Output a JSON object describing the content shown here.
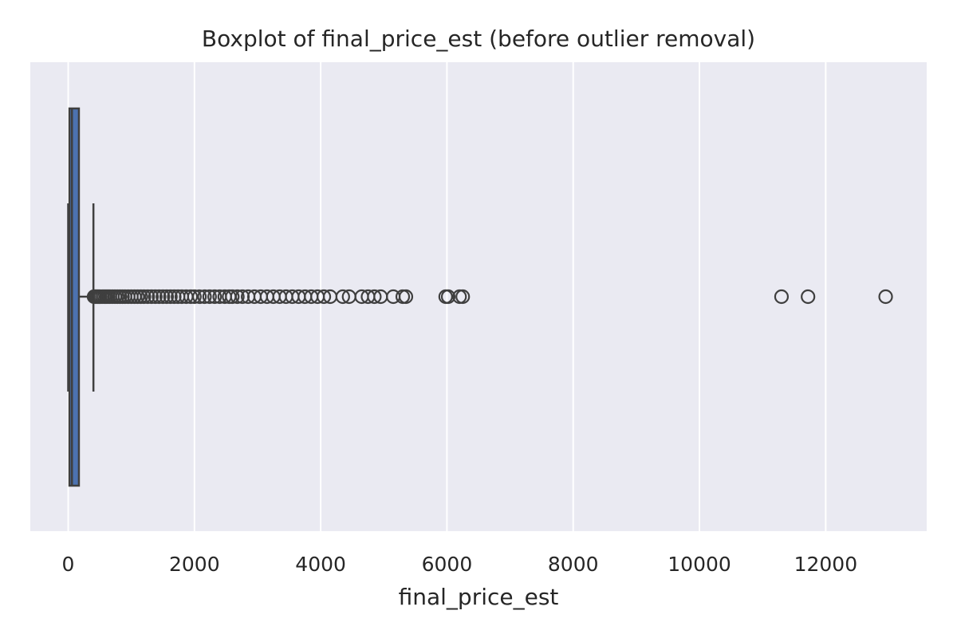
{
  "chart_data": {
    "type": "boxplot",
    "orientation": "horizontal",
    "title": "Boxplot of final_price_est (before outlier removal)",
    "xlabel": "final_price_est",
    "ylabel": "",
    "xlim": [
      -600,
      13600
    ],
    "xticks": [
      0,
      2000,
      4000,
      6000,
      8000,
      10000,
      12000
    ],
    "xtick_labels": [
      "0",
      "2000",
      "4000",
      "6000",
      "8000",
      "10000",
      "12000"
    ],
    "grid": true,
    "box": {
      "whisker_low": 0,
      "q1": 20,
      "median": 60,
      "q3": 170,
      "whisker_high": 400
    },
    "outliers": [
      410,
      430,
      450,
      470,
      490,
      510,
      540,
      570,
      600,
      630,
      660,
      700,
      740,
      780,
      820,
      860,
      900,
      950,
      1000,
      1050,
      1100,
      1150,
      1200,
      1260,
      1320,
      1380,
      1440,
      1500,
      1560,
      1620,
      1680,
      1740,
      1800,
      1870,
      1940,
      2000,
      2080,
      2160,
      2240,
      2320,
      2400,
      2480,
      2550,
      2600,
      2680,
      2760,
      2850,
      2950,
      3050,
      3150,
      3250,
      3350,
      3450,
      3550,
      3650,
      3750,
      3850,
      3950,
      4050,
      4150,
      4350,
      4450,
      4650,
      4750,
      4850,
      4950,
      5150,
      5300,
      5350,
      5980,
      6020,
      6200,
      6250,
      11300,
      11720,
      12950
    ],
    "colors": {
      "box_fill": "#4c72b0",
      "line": "#3f3f3f",
      "background": "#eaeaf2",
      "grid": "#ffffff"
    }
  }
}
